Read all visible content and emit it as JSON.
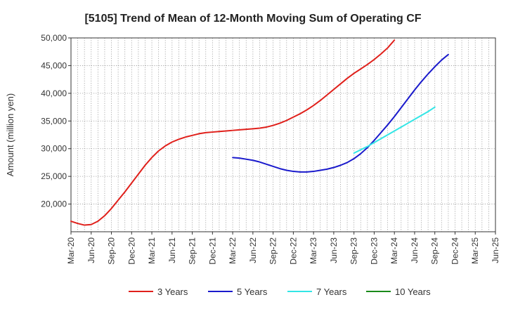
{
  "chart_data": {
    "type": "line",
    "title": "[5105]  Trend of Mean of 12-Month Moving Sum of Operating CF",
    "xlabel": "",
    "ylabel": "Amount (million yen)",
    "ylim": [
      15000,
      50000
    ],
    "y_ticks": [
      20000,
      25000,
      30000,
      35000,
      40000,
      45000,
      50000
    ],
    "y_tick_labels": [
      "20,000",
      "25,000",
      "30,000",
      "35,000",
      "40,000",
      "45,000",
      "50,000"
    ],
    "x_tick_labels": [
      "Mar-20",
      "Jun-20",
      "Sep-20",
      "Dec-20",
      "Mar-21",
      "Jun-21",
      "Sep-21",
      "Dec-21",
      "Mar-22",
      "Jun-22",
      "Sep-22",
      "Dec-22",
      "Mar-23",
      "Jun-23",
      "Sep-23",
      "Dec-23",
      "Mar-24",
      "Jun-24",
      "Sep-24",
      "Dec-24",
      "Mar-25",
      "Jun-25"
    ],
    "grid": true,
    "legend_position": "bottom",
    "series": [
      {
        "name": "3 Years",
        "color": "#e0201b",
        "start_index": 0,
        "values": [
          16900,
          16500,
          16200,
          16300,
          16900,
          17900,
          19200,
          20700,
          22200,
          23800,
          25400,
          27000,
          28400,
          29600,
          30500,
          31200,
          31700,
          32100,
          32400,
          32700,
          32900,
          33000,
          33100,
          33200,
          33300,
          33400,
          33500,
          33600,
          33700,
          33900,
          34200,
          34600,
          35100,
          35700,
          36300,
          37000,
          37800,
          38700,
          39700,
          40700,
          41700,
          42700,
          43600,
          44400,
          45200,
          46100,
          47100,
          48200,
          49600
        ]
      },
      {
        "name": "5 Years",
        "color": "#1a1acc",
        "start_index": 24,
        "values": [
          28400,
          28300,
          28100,
          27900,
          27600,
          27200,
          26800,
          26400,
          26100,
          25900,
          25800,
          25800,
          25900,
          26100,
          26300,
          26600,
          27000,
          27500,
          28200,
          29100,
          30200,
          31500,
          32900,
          34300,
          35800,
          37400,
          39000,
          40600,
          42100,
          43500,
          44800,
          46000,
          47000
        ]
      },
      {
        "name": "7 Years",
        "color": "#33e6e6",
        "start_index": 42,
        "values": [
          29200,
          29800,
          30400,
          31100,
          31800,
          32500,
          33200,
          33900,
          34600,
          35300,
          36000,
          36700,
          37500
        ]
      },
      {
        "name": "10 Years",
        "color": "#1a8a1a",
        "start_index": 0,
        "values": []
      }
    ]
  }
}
